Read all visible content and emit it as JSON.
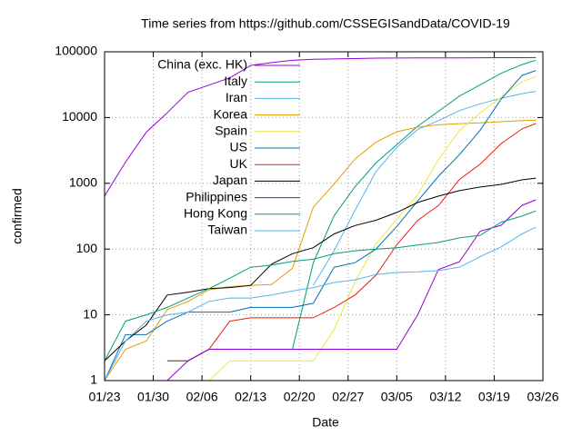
{
  "chart_data": {
    "type": "line",
    "title": "Time series from https://github.com/CSSEGISandData/COVID-19",
    "x_label": "Date",
    "y_label": "confirmed",
    "log_y": true,
    "grid": true,
    "legend": "top-left",
    "xlim": [
      "01/23",
      "03/26"
    ],
    "xticks": [
      "01/23",
      "01/30",
      "02/06",
      "02/13",
      "02/20",
      "02/27",
      "03/05",
      "03/12",
      "03/19",
      "03/26"
    ],
    "ylim": [
      1,
      100000
    ],
    "yticks": [
      1,
      10,
      100,
      1000,
      10000,
      100000
    ],
    "x": [
      "01/23",
      "01/26",
      "01/29",
      "02/01",
      "02/04",
      "02/07",
      "02/10",
      "02/13",
      "02/16",
      "02/19",
      "02/22",
      "02/25",
      "02/28",
      "03/02",
      "03/05",
      "03/08",
      "03/11",
      "03/14",
      "03/17",
      "03/20",
      "03/23",
      "03/25"
    ],
    "series": [
      {
        "name": "China (exc. HK)",
        "color": "#9400d3",
        "values": [
          643,
          2100,
          6000,
          11800,
          24300,
          31100,
          40100,
          62000,
          68400,
          74200,
          76800,
          77700,
          78800,
          80000,
          80400,
          80700,
          80800,
          80900,
          81000,
          81200,
          81400,
          81600
        ]
      },
      {
        "name": "Italy",
        "color": "#009e73",
        "values": [
          null,
          null,
          null,
          2,
          2,
          3,
          3,
          3,
          3,
          3,
          62,
          322,
          888,
          2036,
          3858,
          7375,
          12462,
          21157,
          31506,
          47021,
          63927,
          74386
        ]
      },
      {
        "name": "Iran",
        "color": "#56b4e9",
        "values": [
          null,
          null,
          null,
          null,
          null,
          null,
          null,
          null,
          null,
          null,
          28,
          95,
          388,
          1501,
          3513,
          6566,
          9000,
          12729,
          16169,
          19644,
          23049,
          25000
        ]
      },
      {
        "name": "Korea",
        "color": "#e69f00",
        "values": [
          1,
          3,
          4,
          12,
          16,
          24,
          27,
          28,
          29,
          51,
          433,
          977,
          2337,
          4212,
          6088,
          7134,
          7755,
          8086,
          8320,
          8652,
          8961,
          9137
        ]
      },
      {
        "name": "Spain",
        "color": "#f0e442",
        "values": [
          null,
          null,
          null,
          1,
          1,
          1,
          2,
          2,
          2,
          2,
          2,
          6,
          32,
          120,
          282,
          673,
          2277,
          6391,
          11748,
          20410,
          35136,
          42000
        ]
      },
      {
        "name": "US",
        "color": "#0072b2",
        "values": [
          1,
          5,
          5,
          8,
          11,
          11,
          11,
          13,
          13,
          13,
          15,
          53,
          62,
          100,
          221,
          537,
          1281,
          2727,
          6421,
          19100,
          43667,
          52000
        ]
      },
      {
        "name": "UK",
        "color": "#e51e10",
        "values": [
          null,
          null,
          null,
          2,
          2,
          3,
          8,
          9,
          9,
          9,
          9,
          13,
          20,
          40,
          116,
          273,
          459,
          1144,
          1960,
          4014,
          6726,
          8100
        ]
      },
      {
        "name": "Japan",
        "color": "#000000",
        "values": [
          2,
          4,
          7,
          20,
          22,
          25,
          26,
          28,
          59,
          85,
          105,
          170,
          228,
          274,
          360,
          511,
          639,
          773,
          878,
          963,
          1128,
          1200
        ]
      },
      {
        "name": "Philippines",
        "color": "#9400d3",
        "values": [
          null,
          null,
          null,
          1,
          2,
          3,
          3,
          3,
          3,
          3,
          3,
          3,
          3,
          3,
          3,
          10,
          49,
          64,
          187,
          230,
          462,
          560
        ]
      },
      {
        "name": "Hong Kong",
        "color": "#009e73",
        "values": [
          2,
          8,
          10,
          13,
          18,
          25,
          36,
          53,
          57,
          65,
          70,
          85,
          94,
          100,
          105,
          115,
          126,
          148,
          162,
          256,
          317,
          380
        ]
      },
      {
        "name": "Taiwan",
        "color": "#56b4e9",
        "values": [
          1,
          4,
          8,
          10,
          11,
          16,
          18,
          18,
          20,
          23,
          26,
          31,
          34,
          41,
          44,
          45,
          47,
          53,
          77,
          108,
          170,
          215
        ]
      }
    ]
  }
}
